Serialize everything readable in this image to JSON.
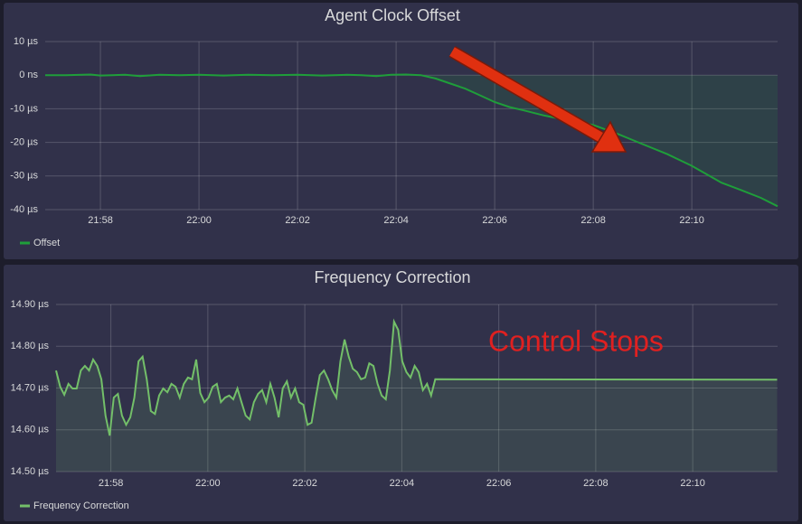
{
  "chart_data": [
    {
      "type": "line",
      "title": "Agent Clock Offset",
      "x": [
        1316.88,
        1317.3,
        1317.8,
        1318.0,
        1318.5,
        1318.8,
        1319.2,
        1319.6,
        1320.0,
        1320.5,
        1321.0,
        1321.5,
        1322.0,
        1322.5,
        1323.0,
        1323.3,
        1323.6,
        1323.9,
        1324.2,
        1324.5,
        1324.8,
        1325.1,
        1325.4,
        1325.7,
        1326.0,
        1326.3,
        1326.6,
        1327.0,
        1327.5,
        1328.0,
        1328.5,
        1329.0,
        1329.5,
        1330.0,
        1330.3,
        1330.6,
        1331.0,
        1331.4,
        1331.74
      ],
      "series": [
        {
          "name": "Offset",
          "color": "#1f9e3a",
          "values": [
            0,
            0,
            0.2,
            -0.1,
            0.1,
            -0.3,
            0.1,
            0,
            0.1,
            -0.1,
            0.1,
            0,
            0.1,
            -0.1,
            0.1,
            0,
            -0.3,
            0.1,
            0.2,
            0,
            -1,
            -2.5,
            -4,
            -6,
            -8,
            -9.5,
            -10.5,
            -12,
            -13.5,
            -14.8,
            -17.5,
            -20.5,
            -23.5,
            -27,
            -29.5,
            -32,
            -34.2,
            -36.5,
            -39
          ]
        }
      ],
      "xlim": [
        1316.88,
        1331.74
      ],
      "xticks": [
        {
          "value": 1318,
          "label": "21:58"
        },
        {
          "value": 1320,
          "label": "22:00"
        },
        {
          "value": 1322,
          "label": "22:02"
        },
        {
          "value": 1324,
          "label": "22:04"
        },
        {
          "value": 1326,
          "label": "22:06"
        },
        {
          "value": 1328,
          "label": "22:08"
        },
        {
          "value": 1330,
          "label": "22:10"
        }
      ],
      "ylim": [
        -40,
        10
      ],
      "yticks": [
        {
          "value": 10,
          "label": "10 µs"
        },
        {
          "value": 0,
          "label": "0 ns"
        },
        {
          "value": -10,
          "label": "-10 µs"
        },
        {
          "value": -20,
          "label": "-20 µs"
        },
        {
          "value": -30,
          "label": "-30 µs"
        },
        {
          "value": -40,
          "label": "-40 µs"
        }
      ],
      "grid": true,
      "fill_base": 0
    },
    {
      "type": "line",
      "title": "Frequency Correction",
      "annotation": "Control Stops",
      "x": [
        1316.87,
        1316.955,
        1317.04,
        1317.125,
        1317.21,
        1317.295,
        1317.38,
        1317.465,
        1317.55,
        1317.635,
        1317.72,
        1317.805,
        1317.89,
        1317.975,
        1318.06,
        1318.145,
        1318.23,
        1318.315,
        1318.4,
        1318.485,
        1318.57,
        1318.655,
        1318.74,
        1318.825,
        1318.91,
        1318.995,
        1319.08,
        1319.165,
        1319.25,
        1319.335,
        1319.42,
        1319.505,
        1319.59,
        1319.675,
        1319.76,
        1319.845,
        1319.93,
        1320.015,
        1320.1,
        1320.185,
        1320.27,
        1320.355,
        1320.44,
        1320.525,
        1320.61,
        1320.695,
        1320.78,
        1320.865,
        1320.95,
        1321.035,
        1321.12,
        1321.205,
        1321.29,
        1321.375,
        1321.46,
        1321.545,
        1321.63,
        1321.715,
        1321.8,
        1321.885,
        1321.97,
        1322.055,
        1322.14,
        1322.225,
        1322.31,
        1322.395,
        1322.48,
        1322.565,
        1322.65,
        1322.735,
        1322.82,
        1322.905,
        1322.99,
        1323.075,
        1323.16,
        1323.245,
        1323.33,
        1323.415,
        1323.5,
        1323.585,
        1323.67,
        1323.755,
        1323.84,
        1323.925,
        1324.01,
        1324.095,
        1324.18,
        1324.265,
        1324.35,
        1324.435,
        1324.52,
        1324.605,
        1324.69,
        1331.74
      ],
      "series": [
        {
          "name": "Frequency Correction",
          "color": "#73bf69",
          "values": [
            14.742,
            14.703,
            14.684,
            14.71,
            14.699,
            14.699,
            14.742,
            14.753,
            14.742,
            14.768,
            14.753,
            14.721,
            14.634,
            14.586,
            14.677,
            14.686,
            14.634,
            14.612,
            14.63,
            14.677,
            14.764,
            14.775,
            14.721,
            14.645,
            14.638,
            14.682,
            14.699,
            14.69,
            14.71,
            14.703,
            14.677,
            14.71,
            14.725,
            14.721,
            14.768,
            14.688,
            14.666,
            14.677,
            14.703,
            14.71,
            14.666,
            14.677,
            14.682,
            14.673,
            14.699,
            14.666,
            14.634,
            14.625,
            14.666,
            14.686,
            14.695,
            14.666,
            14.71,
            14.677,
            14.63,
            14.699,
            14.716,
            14.677,
            14.699,
            14.666,
            14.66,
            14.612,
            14.617,
            14.677,
            14.731,
            14.742,
            14.721,
            14.695,
            14.677,
            14.764,
            14.816,
            14.775,
            14.746,
            14.738,
            14.721,
            14.725,
            14.759,
            14.753,
            14.71,
            14.682,
            14.673,
            14.742,
            14.859,
            14.839,
            14.764,
            14.738,
            14.725,
            14.753,
            14.738,
            14.695,
            14.71,
            14.682,
            14.721,
            14.72
          ]
        }
      ],
      "xlim": [
        1316.87,
        1331.75
      ],
      "xticks": [
        {
          "value": 1318,
          "label": "21:58"
        },
        {
          "value": 1320,
          "label": "22:00"
        },
        {
          "value": 1322,
          "label": "22:02"
        },
        {
          "value": 1324,
          "label": "22:04"
        },
        {
          "value": 1326,
          "label": "22:06"
        },
        {
          "value": 1328,
          "label": "22:08"
        },
        {
          "value": 1330,
          "label": "22:10"
        }
      ],
      "ylim": [
        14.5,
        14.9
      ],
      "yticks": [
        {
          "value": 14.9,
          "label": "14.90 µs"
        },
        {
          "value": 14.8,
          "label": "14.80 µs"
        },
        {
          "value": 14.7,
          "label": "14.70 µs"
        },
        {
          "value": 14.6,
          "label": "14.60 µs"
        },
        {
          "value": 14.5,
          "label": "14.50 µs"
        }
      ],
      "grid": true,
      "fill_base": 14.5
    }
  ]
}
